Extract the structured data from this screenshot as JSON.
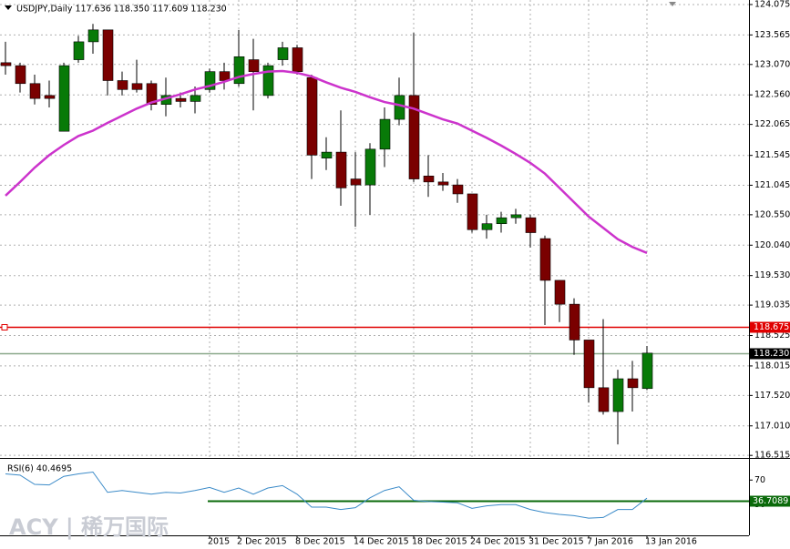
{
  "chart_data": {
    "type": "candlestick",
    "title": "USDJPY,Daily  117.636 118.350 117.609 118.230",
    "watermark": "ACY | 稀万国际",
    "categories": [
      null,
      null,
      null,
      null,
      null,
      null,
      null,
      null,
      null,
      null,
      null,
      null,
      null,
      null,
      "2015",
      null,
      "2 Dec 2015",
      null,
      null,
      null,
      "8 Dec 2015",
      null,
      null,
      null,
      "14 Dec 2015",
      null,
      null,
      null,
      "18 Dec 2015",
      null,
      null,
      null,
      "24 Dec 2015",
      null,
      null,
      null,
      "31 Dec 2015",
      null,
      null,
      null,
      "7 Jan 2016",
      null,
      null,
      null,
      "13 Jan 2016"
    ],
    "open": [
      123.1,
      123.05,
      122.75,
      122.55,
      121.95,
      123.15,
      123.45,
      123.65,
      122.8,
      122.75,
      122.75,
      122.4,
      122.5,
      122.45,
      122.65,
      122.95,
      122.75,
      123.15,
      122.55,
      123.15,
      123.35,
      122.85,
      121.5,
      121.6,
      121.15,
      121.05,
      121.65,
      122.15,
      122.55,
      121.2,
      121.1,
      121.05,
      120.9,
      120.3,
      120.4,
      120.5,
      120.5,
      120.15,
      119.45,
      119.05,
      118.45,
      117.65,
      117.25,
      117.8,
      117.636
    ],
    "high": [
      123.45,
      123.1,
      122.9,
      122.8,
      123.1,
      123.55,
      123.75,
      123.65,
      122.95,
      123.15,
      122.8,
      122.85,
      122.6,
      122.7,
      123.0,
      123.1,
      123.65,
      123.5,
      123.1,
      123.45,
      123.4,
      122.9,
      121.85,
      122.3,
      121.6,
      121.75,
      122.35,
      122.85,
      123.6,
      121.55,
      121.25,
      121.15,
      120.9,
      120.55,
      120.6,
      120.65,
      120.55,
      120.2,
      119.45,
      119.15,
      118.45,
      118.8,
      117.95,
      118.1,
      118.35
    ],
    "low": [
      122.9,
      122.6,
      122.4,
      122.35,
      121.95,
      123.1,
      123.25,
      122.55,
      122.55,
      122.6,
      122.3,
      122.2,
      122.35,
      122.25,
      122.6,
      122.65,
      122.7,
      122.3,
      122.5,
      123.05,
      122.9,
      121.15,
      121.3,
      120.7,
      120.35,
      120.55,
      121.35,
      122.05,
      121.1,
      120.85,
      120.95,
      120.75,
      120.25,
      120.15,
      120.25,
      120.4,
      120.0,
      118.7,
      118.75,
      118.2,
      117.4,
      117.2,
      116.7,
      117.25,
      117.609
    ],
    "close": [
      123.05,
      122.75,
      122.5,
      122.5,
      123.05,
      123.45,
      123.65,
      122.8,
      122.65,
      122.65,
      122.4,
      122.55,
      122.45,
      122.55,
      122.95,
      122.8,
      123.2,
      122.95,
      123.05,
      123.35,
      122.95,
      121.55,
      121.6,
      121.0,
      121.05,
      121.65,
      122.15,
      122.55,
      121.15,
      121.1,
      121.05,
      120.9,
      120.3,
      120.4,
      120.5,
      120.55,
      120.25,
      119.45,
      119.05,
      118.45,
      117.65,
      117.25,
      117.8,
      117.65,
      118.23
    ],
    "up_color": "#087a08",
    "down_color": "#7a0000",
    "moving_average": {
      "color": "#cc33cc",
      "values": [
        120.87,
        121.1,
        121.34,
        121.55,
        121.72,
        121.87,
        121.96,
        122.09,
        122.21,
        122.33,
        122.43,
        122.5,
        122.57,
        122.65,
        122.71,
        122.78,
        122.86,
        122.91,
        122.95,
        122.96,
        122.93,
        122.87,
        122.77,
        122.68,
        122.61,
        122.52,
        122.44,
        122.39,
        122.33,
        122.24,
        122.15,
        122.08,
        121.96,
        121.84,
        121.71,
        121.57,
        121.42,
        121.24,
        121.0,
        120.76,
        120.52,
        120.33,
        120.14,
        120.01,
        119.91
      ]
    },
    "levels": [
      {
        "value": 118.675,
        "label": "118.675",
        "color": "#e00000"
      },
      {
        "value": 118.23,
        "label": "118.230",
        "color": "#8aa88a"
      }
    ],
    "ylim": [
      116.472,
      124.151
    ],
    "yticks": [
      {
        "value": 124.075,
        "label": "124.075"
      },
      {
        "value": 123.565,
        "label": "123.565"
      },
      {
        "value": 123.07,
        "label": "123.070"
      },
      {
        "value": 122.56,
        "label": "122.560"
      },
      {
        "value": 122.065,
        "label": "122.065"
      },
      {
        "value": 121.545,
        "label": "121.545"
      },
      {
        "value": 121.045,
        "label": "121.045"
      },
      {
        "value": 120.55,
        "label": "120.550"
      },
      {
        "value": 120.04,
        "label": "120.040"
      },
      {
        "value": 119.53,
        "label": "119.530"
      },
      {
        "value": 119.035,
        "label": "119.035"
      },
      {
        "value": 118.525,
        "label": "118.525"
      },
      {
        "value": 118.015,
        "label": "118.015"
      },
      {
        "value": 117.52,
        "label": "117.520"
      },
      {
        "value": 117.01,
        "label": "117.010"
      },
      {
        "value": 116.515,
        "label": "116.515"
      }
    ],
    "grid": true,
    "rsi": {
      "label": "RSI(6) 40.4695",
      "color": "#3a8ac8",
      "values": [
        80,
        78,
        63,
        62,
        76,
        80,
        83,
        50,
        53,
        50,
        47,
        50,
        49,
        53,
        58,
        50,
        57,
        47,
        57,
        61,
        47,
        26,
        26,
        22,
        25,
        41,
        53,
        59,
        37,
        35,
        34,
        33,
        24,
        28,
        30,
        30,
        22,
        17,
        14,
        12,
        8,
        9,
        22,
        22,
        40.4695
      ],
      "level": {
        "value": 36.7089,
        "label": "36.7089",
        "color": "#0a6a0a"
      },
      "ylim": [
        -20,
        103
      ],
      "yticks": [
        70,
        30
      ]
    }
  }
}
